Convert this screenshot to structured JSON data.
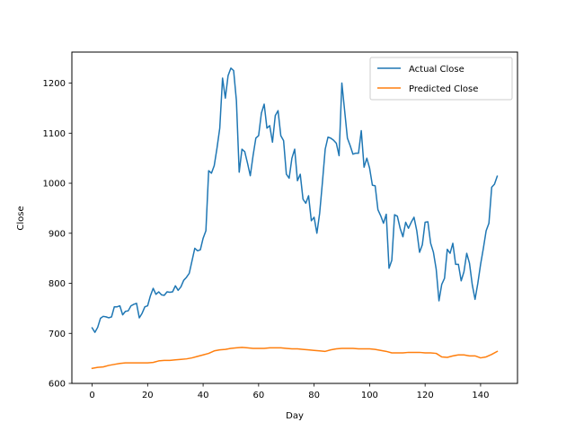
{
  "chart_data": {
    "type": "line",
    "title": "",
    "xlabel": "Day",
    "ylabel": "Close",
    "xlim": [
      -7.3,
      153.3
    ],
    "ylim": [
      600,
      1262
    ],
    "xticks": [
      0,
      20,
      40,
      60,
      80,
      100,
      120,
      140
    ],
    "yticks": [
      600,
      700,
      800,
      900,
      1000,
      1100,
      1200
    ],
    "grid": false,
    "legend_position": "top-right",
    "series": [
      {
        "name": "Actual Close",
        "color": "#1f77b4",
        "x": [
          0,
          1,
          2,
          3,
          4,
          5,
          6,
          7,
          8,
          9,
          10,
          11,
          12,
          13,
          14,
          15,
          16,
          17,
          18,
          19,
          20,
          21,
          22,
          23,
          24,
          25,
          26,
          27,
          28,
          29,
          30,
          31,
          32,
          33,
          34,
          35,
          36,
          37,
          38,
          39,
          40,
          41,
          42,
          43,
          44,
          45,
          46,
          47,
          48,
          49,
          50,
          51,
          52,
          53,
          54,
          55,
          56,
          57,
          58,
          59,
          60,
          61,
          62,
          63,
          64,
          65,
          66,
          67,
          68,
          69,
          70,
          71,
          72,
          73,
          74,
          75,
          76,
          77,
          78,
          79,
          80,
          81,
          82,
          83,
          84,
          85,
          86,
          87,
          88,
          89,
          90,
          91,
          92,
          93,
          94,
          95,
          96,
          97,
          98,
          99,
          100,
          101,
          102,
          103,
          104,
          105,
          106,
          107,
          108,
          109,
          110,
          111,
          112,
          113,
          114,
          115,
          116,
          117,
          118,
          119,
          120,
          121,
          122,
          123,
          124,
          125,
          126,
          127,
          128,
          129,
          130,
          131,
          132,
          133,
          134,
          135,
          136,
          137,
          138,
          139,
          140,
          141,
          142,
          143,
          144,
          145,
          146
        ],
        "values": [
          711,
          702,
          712,
          730,
          734,
          733,
          731,
          733,
          753,
          753,
          755,
          737,
          744,
          745,
          755,
          758,
          760,
          731,
          740,
          753,
          755,
          775,
          790,
          778,
          783,
          777,
          776,
          783,
          782,
          783,
          795,
          786,
          793,
          806,
          812,
          820,
          845,
          870,
          865,
          867,
          890,
          905,
          1025,
          1020,
          1035,
          1070,
          1110,
          1210,
          1170,
          1215,
          1230,
          1225,
          1165,
          1022,
          1068,
          1063,
          1040,
          1015,
          1055,
          1090,
          1095,
          1140,
          1158,
          1110,
          1115,
          1082,
          1135,
          1145,
          1095,
          1085,
          1018,
          1010,
          1050,
          1068,
          1005,
          1018,
          968,
          960,
          975,
          925,
          932,
          900,
          940,
          1002,
          1068,
          1092,
          1090,
          1086,
          1080,
          1055,
          1200,
          1145,
          1090,
          1075,
          1058,
          1060,
          1060,
          1105,
          1032,
          1050,
          1030,
          996,
          995,
          947,
          935,
          920,
          938,
          830,
          846,
          937,
          934,
          910,
          893,
          922,
          910,
          922,
          932,
          905,
          862,
          877,
          922,
          923,
          880,
          862,
          828,
          765,
          798,
          810,
          868,
          860,
          880,
          838,
          838,
          805,
          823,
          860,
          840,
          797,
          768,
          800,
          838,
          870,
          905,
          920,
          992,
          998,
          1014
        ]
      },
      {
        "name": "Predicted Close",
        "color": "#ff7f0e",
        "x": [
          0,
          2,
          4,
          6,
          8,
          10,
          12,
          14,
          16,
          18,
          20,
          22,
          24,
          26,
          28,
          30,
          32,
          34,
          36,
          38,
          40,
          42,
          44,
          46,
          48,
          50,
          52,
          54,
          56,
          58,
          60,
          62,
          64,
          66,
          68,
          70,
          72,
          74,
          76,
          78,
          80,
          82,
          84,
          86,
          88,
          90,
          92,
          94,
          96,
          98,
          100,
          102,
          104,
          106,
          108,
          110,
          112,
          114,
          116,
          118,
          120,
          122,
          124,
          126,
          128,
          130,
          132,
          134,
          136,
          138,
          140,
          142,
          144,
          146
        ],
        "values": [
          630,
          632,
          633,
          636,
          638,
          640,
          641,
          641,
          641,
          641,
          641,
          642,
          645,
          646,
          646,
          647,
          648,
          649,
          651,
          654,
          657,
          660,
          665,
          667,
          668,
          670,
          671,
          672,
          671,
          670,
          670,
          670,
          671,
          671,
          671,
          670,
          669,
          669,
          668,
          667,
          666,
          665,
          664,
          667,
          669,
          670,
          670,
          670,
          669,
          669,
          669,
          668,
          666,
          664,
          661,
          661,
          661,
          662,
          662,
          662,
          661,
          661,
          660,
          653,
          652,
          655,
          657,
          657,
          655,
          655,
          651,
          653,
          658,
          664
        ]
      }
    ]
  }
}
